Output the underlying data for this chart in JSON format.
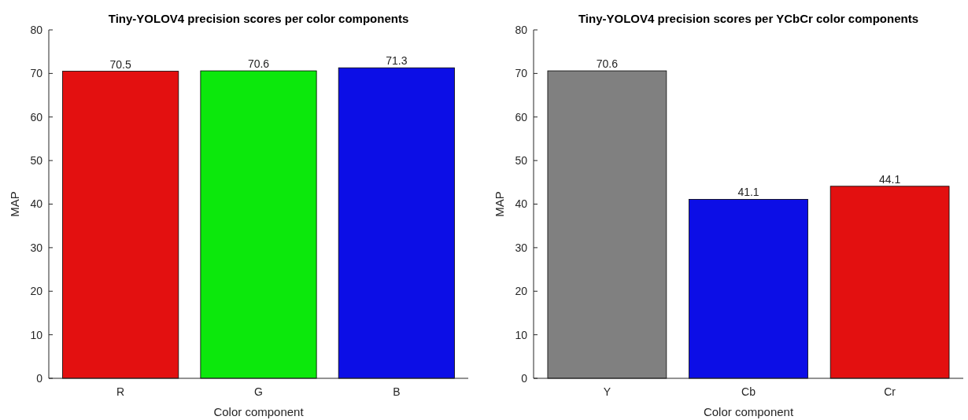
{
  "chart_data": [
    {
      "type": "bar",
      "title": "Tiny-YOLOV4 precision scores per color components",
      "xlabel": "Color component",
      "ylabel": "MAP",
      "categories": [
        "R",
        "G",
        "B"
      ],
      "values": [
        70.5,
        70.6,
        71.3
      ],
      "colors": [
        "#e31010",
        "#0ce80c",
        "#0c0ee6"
      ],
      "ylim": [
        0,
        80
      ],
      "yticks": [
        0,
        10,
        20,
        30,
        40,
        50,
        60,
        70,
        80
      ],
      "data_labels": true,
      "grid": false
    },
    {
      "type": "bar",
      "title": "Tiny-YOLOV4 precision scores per YCbCr color components",
      "xlabel": "Color component",
      "ylabel": "MAP",
      "categories": [
        "Y",
        "Cb",
        "Cr"
      ],
      "values": [
        70.6,
        41.1,
        44.1
      ],
      "colors": [
        "#808080",
        "#0c0ee6",
        "#e31010"
      ],
      "ylim": [
        0,
        80
      ],
      "yticks": [
        0,
        10,
        20,
        30,
        40,
        50,
        60,
        70,
        80
      ],
      "data_labels": true,
      "grid": false
    }
  ]
}
